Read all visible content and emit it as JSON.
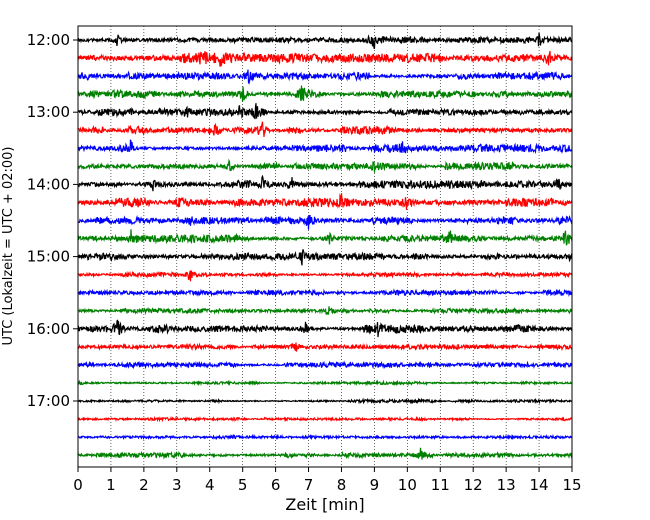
{
  "chart_data": {
    "type": "line",
    "subtype": "helicorder",
    "xlabel": "Zeit  [min]",
    "ylabel": "UTC (Lokalzeit = UTC + 02:00)",
    "x_ticks": [
      "0",
      "1",
      "2",
      "3",
      "4",
      "5",
      "6",
      "7",
      "8",
      "9",
      "10",
      "11",
      "12",
      "13",
      "14",
      "15"
    ],
    "xlim": [
      0,
      15
    ],
    "y_ticks": [
      "12:00",
      "13:00",
      "14:00",
      "15:00",
      "16:00",
      "17:00"
    ],
    "trace_interval_min": 15,
    "start_time": "12:00",
    "grid": "vertical dotted lines at each minute",
    "colors": [
      "#000000",
      "#ff0000",
      "#0000ff",
      "#008000"
    ],
    "traces": [
      {
        "start": "12:00",
        "color": "#000000",
        "activity": "moderate",
        "events_min": [
          1.2,
          9.0,
          14.0
        ]
      },
      {
        "start": "12:15",
        "color": "#ff0000",
        "activity": "high",
        "events_min": [
          3.8,
          4.3,
          14.3
        ]
      },
      {
        "start": "12:30",
        "color": "#0000ff",
        "activity": "moderate",
        "events_min": [
          5.2
        ]
      },
      {
        "start": "12:45",
        "color": "#008000",
        "activity": "moderate",
        "events_min": [
          5.0,
          6.8
        ]
      },
      {
        "start": "13:00",
        "color": "#000000",
        "activity": "moderate",
        "events_min": [
          3.3,
          4.9,
          5.4
        ]
      },
      {
        "start": "13:15",
        "color": "#ff0000",
        "activity": "moderate",
        "events_min": [
          4.2,
          5.6
        ]
      },
      {
        "start": "13:30",
        "color": "#0000ff",
        "activity": "moderate",
        "events_min": [
          1.6,
          9.9
        ]
      },
      {
        "start": "13:45",
        "color": "#008000",
        "activity": "moderate",
        "events_min": [
          4.6,
          9.0
        ]
      },
      {
        "start": "14:00",
        "color": "#000000",
        "activity": "moderate",
        "events_min": [
          2.3,
          5.6,
          6.5,
          14.6
        ]
      },
      {
        "start": "14:15",
        "color": "#ff0000",
        "activity": "high",
        "events_min": [
          8.0,
          10.0
        ]
      },
      {
        "start": "14:30",
        "color": "#0000ff",
        "activity": "moderate",
        "events_min": [
          3.4,
          7.0
        ]
      },
      {
        "start": "14:45",
        "color": "#008000",
        "activity": "moderate",
        "events_min": [
          1.6,
          7.6,
          11.3,
          14.8
        ]
      },
      {
        "start": "15:00",
        "color": "#000000",
        "activity": "moderate",
        "events_min": [
          6.8
        ]
      },
      {
        "start": "15:15",
        "color": "#ff0000",
        "activity": "low",
        "events_min": [
          3.4
        ]
      },
      {
        "start": "15:30",
        "color": "#0000ff",
        "activity": "low",
        "events_min": []
      },
      {
        "start": "15:45",
        "color": "#008000",
        "activity": "low",
        "events_min": [
          7.6
        ]
      },
      {
        "start": "16:00",
        "color": "#000000",
        "activity": "moderate",
        "events_min": [
          1.2,
          6.9,
          9.1
        ]
      },
      {
        "start": "16:15",
        "color": "#ff0000",
        "activity": "low",
        "events_min": [
          6.6
        ]
      },
      {
        "start": "16:30",
        "color": "#0000ff",
        "activity": "low",
        "events_min": []
      },
      {
        "start": "16:45",
        "color": "#008000",
        "activity": "very low",
        "events_min": []
      },
      {
        "start": "17:00",
        "color": "#000000",
        "activity": "very low",
        "events_min": []
      },
      {
        "start": "17:15",
        "color": "#ff0000",
        "activity": "very low",
        "events_min": []
      },
      {
        "start": "17:30",
        "color": "#0000ff",
        "activity": "very low",
        "events_min": []
      },
      {
        "start": "17:45",
        "color": "#008000",
        "activity": "low",
        "events_min": [
          10.4
        ]
      }
    ]
  }
}
